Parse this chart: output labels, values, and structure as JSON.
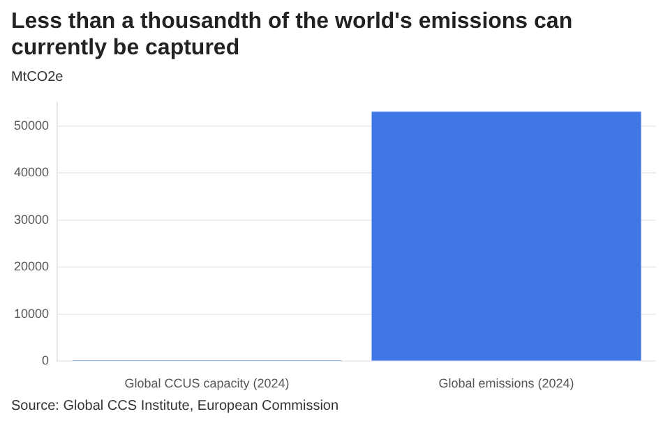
{
  "chart_data": {
    "type": "bar",
    "title": "Less than a thousandth of the world's emissions can currently be captured",
    "ylabel": "MtCO2e",
    "categories": [
      "Global CCUS capacity (2024)",
      "Global emissions (2024)"
    ],
    "values": [
      50,
      53000
    ],
    "color": "#3f77e4",
    "ylim": [
      0,
      55000
    ],
    "yticks": [
      0,
      10000,
      20000,
      30000,
      40000,
      50000
    ],
    "grid": "y",
    "annotations": [
      "Source: Global CCS Institute, European Commission"
    ]
  }
}
